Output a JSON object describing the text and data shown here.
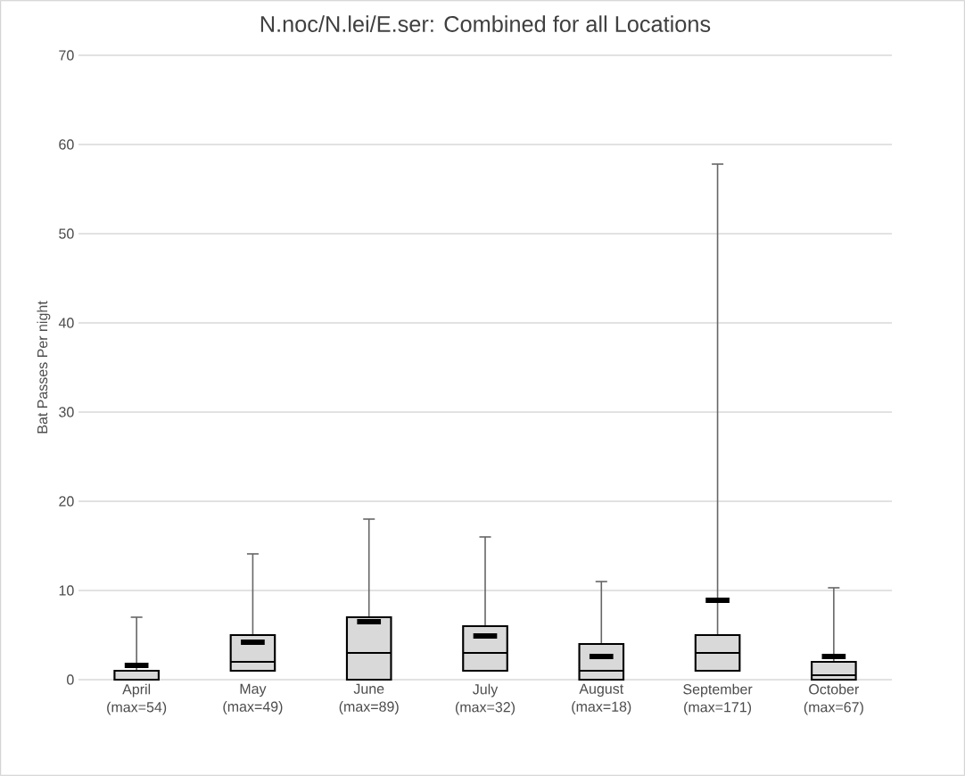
{
  "chart_data": {
    "type": "box",
    "title": "N.noc/N.lei/E.ser: Combined for all Locations",
    "ylabel": "Bat Passes Per night",
    "categories": [
      "April (max=54)",
      "May (max=49)",
      "June (max=89)",
      "July (max=32)",
      "August (max=18)",
      "September (max=171)",
      "October (max=67)"
    ],
    "series": [
      {
        "color": "#d9d9d9",
        "boxes": [
          {
            "low": 0,
            "q1": 0,
            "median": 0,
            "q3": 1,
            "high": 7,
            "mean": 1.6
          },
          {
            "low": 1,
            "q1": 1,
            "median": 2,
            "q3": 5,
            "high": 14.1,
            "mean": 4.2
          },
          {
            "low": 0,
            "q1": 0,
            "median": 3,
            "q3": 7,
            "high": 18,
            "mean": 6.5
          },
          {
            "low": 1,
            "q1": 1,
            "median": 3,
            "q3": 6,
            "high": 16,
            "mean": 4.9
          },
          {
            "low": 0,
            "q1": 0,
            "median": 1,
            "q3": 4,
            "high": 11,
            "mean": 2.6
          },
          {
            "low": 1,
            "q1": 1,
            "median": 3,
            "q3": 5,
            "high": 57.8,
            "mean": 8.9
          },
          {
            "low": 0,
            "q1": 0,
            "median": 0.5,
            "q3": 2,
            "high": 10.3,
            "mean": 2.6
          }
        ]
      }
    ],
    "ylim": [
      0,
      70
    ],
    "yticks": [
      0,
      10,
      20,
      30,
      40,
      50,
      60,
      70
    ],
    "grid": "y"
  }
}
